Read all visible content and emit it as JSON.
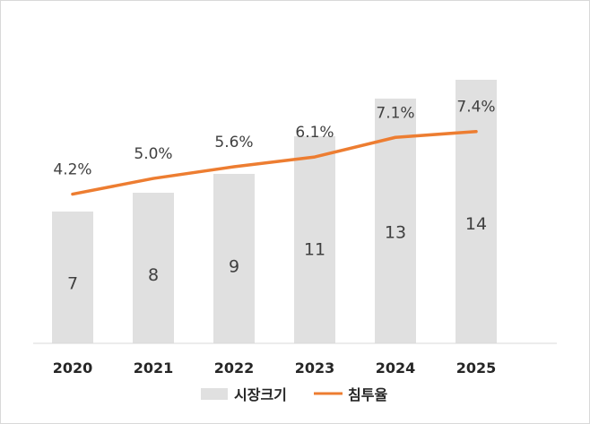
{
  "chart_data": {
    "type": "bar",
    "categories": [
      "2020",
      "2021",
      "2022",
      "2023",
      "2024",
      "2025"
    ],
    "series": [
      {
        "name": "시장크기",
        "type": "bar",
        "values": [
          7,
          8,
          9,
          11,
          13,
          14
        ],
        "labels": [
          "7",
          "8",
          "9",
          "11",
          "13",
          "14"
        ],
        "color": "#e0e0e0"
      },
      {
        "name": "침투율",
        "type": "line",
        "values": [
          4.2,
          5.0,
          5.6,
          6.1,
          7.1,
          7.4
        ],
        "labels": [
          "4.2%",
          "5.0%",
          "5.6%",
          "6.1%",
          "7.1%",
          "7.4%"
        ],
        "color": "#ed7d31"
      }
    ],
    "legend": "bottom",
    "grid": false
  }
}
